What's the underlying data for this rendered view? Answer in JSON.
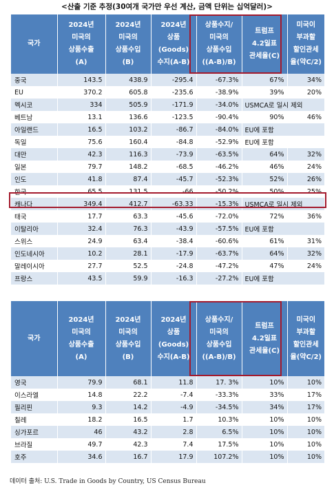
{
  "caption": "<산출 기준 추정(30여개 국가만 우선 계산, 금액 단위는 십억달러)>",
  "table1": {
    "headers": [
      [
        "국가"
      ],
      [
        "2024년",
        "미국의",
        "상품수출",
        "(A)"
      ],
      [
        "2024년",
        "미국의",
        "상품수입",
        "(B)"
      ],
      [
        "2024년",
        "상품",
        "(Goods)",
        "수지(A-B)"
      ],
      [
        "상품수지/",
        "미국의",
        "상품수입",
        "((A-B)/B)"
      ],
      [
        "트럼프",
        "4.2일표",
        "관세율(C)"
      ],
      [
        "미국이",
        "부과할",
        "할인관세",
        "율(약C/2)"
      ]
    ],
    "rows": [
      [
        "중국",
        "143.5",
        "438.9",
        "-295.4",
        "-67.3%",
        "67%",
        "34%"
      ],
      [
        "EU",
        "370.2",
        "605.8",
        "-235.6",
        "-38.9%",
        "39%",
        "20%"
      ],
      [
        "멕시코",
        "334",
        "505.9",
        "-171.9",
        "-34.0%",
        "USMCA로 일시 제외",
        ""
      ],
      [
        "베트남",
        "13.1",
        "136.6",
        "-123.5",
        "-90.4%",
        "90%",
        "46%"
      ],
      [
        "아일랜드",
        "16.5",
        "103.2",
        "-86.7",
        "-84.0%",
        "EU에 포함",
        ""
      ],
      [
        "독일",
        "75.6",
        "160.4",
        "-84.8",
        "-52.9%",
        "EU에 포함",
        ""
      ],
      [
        "대만",
        "42.3",
        "116.3",
        "-73.9",
        "-63.5%",
        "64%",
        "32%"
      ],
      [
        "일본",
        "79.7",
        "148.2",
        "-68.5",
        "-46.2%",
        "46%",
        "24%"
      ],
      [
        "인도",
        "41.8",
        "87.4",
        "-45.7",
        "-52.3%",
        "52%",
        "26%"
      ],
      [
        "한국",
        "65.5",
        "131.5",
        "-66",
        "-50.2%",
        "50%",
        "25%"
      ],
      [
        "캐나다",
        "349.4",
        "412.7",
        "-63.33",
        "-15.3%",
        "USMCA로 일시 제외",
        ""
      ],
      [
        "태국",
        "17.7",
        "63.3",
        "-45.6",
        "-72.0%",
        "72%",
        "36%"
      ],
      [
        "이탈리아",
        "32.4",
        "76.3",
        "-43.9",
        "-57.5%",
        "EU에 포함",
        ""
      ],
      [
        "스위스",
        "24.9",
        "63.4",
        "-38.4",
        "-60.6%",
        "61%",
        "31%"
      ],
      [
        "인도네시아",
        "10.2",
        "28.1",
        "-17.9",
        "-63.7%",
        "64%",
        "32%"
      ],
      [
        "말레이시아",
        "27.7",
        "52.5",
        "-24.8",
        "-47.2%",
        "47%",
        "24%"
      ],
      [
        "프랑스",
        "43.5",
        "59.9",
        "-16.3",
        "-27.2%",
        "EU에 포함",
        ""
      ]
    ]
  },
  "table2": {
    "headers": [
      [
        "국가"
      ],
      [
        "2024년",
        "미국의",
        "상품수출",
        "(A)"
      ],
      [
        "2024년",
        "미국의",
        "상품수입",
        "(B)"
      ],
      [
        "2024년",
        "상품",
        "(Goods)",
        "수지(A-B)"
      ],
      [
        "상품수지/",
        "미국의",
        "상품수입",
        "((A-B)/B)"
      ],
      [
        "트럼프",
        "4.2일표",
        "관세율(C)"
      ],
      [
        "미국이",
        "부과할",
        "할인관세",
        "율(약C/2)"
      ]
    ],
    "rows": [
      [
        "영국",
        "79.9",
        "68.1",
        "11.8",
        "17. 3%",
        "10%",
        "10%"
      ],
      [
        "이스라엘",
        "14.8",
        "22.2",
        "-7.4",
        "-33.3%",
        "33%",
        "17%"
      ],
      [
        "필리핀",
        "9.3",
        "14.2",
        "-4.9",
        "-34.5%",
        "34%",
        "17%"
      ],
      [
        "칠레",
        "18.2",
        "16.5",
        "1.7",
        "10.3%",
        "10%",
        "10%"
      ],
      [
        "싱가포르",
        "46",
        "43.2",
        "2.8",
        "6.5%",
        "10%",
        "10%"
      ],
      [
        "브라질",
        "49.7",
        "42.3",
        "7.4",
        "17.5%",
        "10%",
        "10%"
      ],
      [
        "호주",
        "34.6",
        "16.7",
        "17.9",
        "107.2%",
        "10%",
        "10%"
      ]
    ]
  },
  "source": "데이터 출처: U.S. Trade in Goods by Country, US Census Bureau",
  "colors": {
    "header": "#4f81bd",
    "band": "#dbe5f1",
    "highlight": "#a3192c"
  }
}
